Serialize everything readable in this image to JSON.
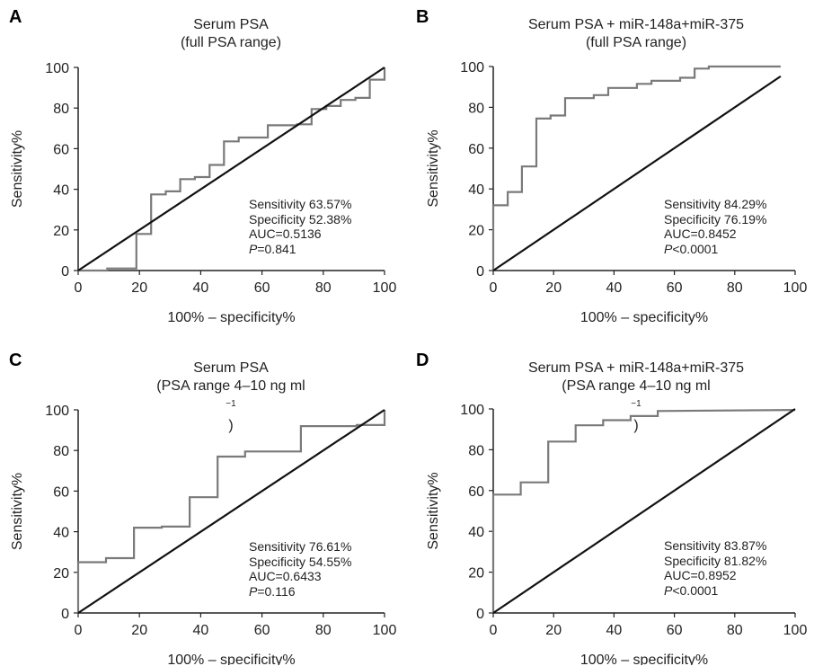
{
  "chart_data": [
    {
      "type": "line",
      "panel_label": "A",
      "title": [
        "Serum PSA",
        "(full PSA range)"
      ],
      "xlabel": "100% – specificity%",
      "ylabel": "Sensitivity%",
      "xlim": [
        0,
        100
      ],
      "ylim": [
        0,
        100
      ],
      "xticks": [
        0,
        20,
        40,
        60,
        80,
        100
      ],
      "yticks": [
        0,
        20,
        40,
        60,
        80,
        100
      ],
      "grid": false,
      "stats": {
        "sensitivity": "Sensitivity 63.57%",
        "specificity": "Specificity 52.38%",
        "auc": "AUC=0.5136",
        "p_label": "P",
        "p_rest": "=0.841"
      },
      "series": [
        {
          "role": "roc",
          "x": [
            0,
            9.5,
            9.5,
            19,
            19,
            23.8,
            23.8,
            28.6,
            28.6,
            33.3,
            33.3,
            38.1,
            38.1,
            42.9,
            42.9,
            47.6,
            47.6,
            52.4,
            52.4,
            61.9,
            61.9,
            71.4,
            71.4,
            76.2,
            76.2,
            81,
            81,
            85.7,
            85.7,
            90.5,
            90.5,
            95.2,
            95.2,
            100,
            100
          ],
          "y": [
            0,
            0,
            1,
            1,
            18,
            18,
            37.5,
            37.5,
            39,
            39,
            45,
            45,
            46,
            46,
            52,
            52,
            63.6,
            63.6,
            65.5,
            65.5,
            71.5,
            71.5,
            72,
            72,
            79.5,
            79.5,
            81,
            81,
            84,
            84,
            85,
            85,
            94,
            94,
            100
          ]
        },
        {
          "role": "reference",
          "x": [
            0,
            100
          ],
          "y": [
            0,
            100
          ]
        }
      ]
    },
    {
      "type": "line",
      "panel_label": "B",
      "title": [
        "Serum PSA + miR-148a+miR-375",
        "(full PSA range)"
      ],
      "xlabel": "100% – specificity%",
      "ylabel": "Sensitivity%",
      "xlim": [
        0,
        100
      ],
      "ylim": [
        0,
        100
      ],
      "xticks": [
        0,
        20,
        40,
        60,
        80,
        100
      ],
      "yticks": [
        0,
        20,
        40,
        60,
        80,
        100
      ],
      "grid": false,
      "stats": {
        "sensitivity": "Sensitivity 84.29%",
        "specificity": "Specificity 76.19%",
        "auc": "AUC=0.8452",
        "p_label": "P",
        "p_rest": "<0.0001"
      },
      "series": [
        {
          "role": "roc",
          "x": [
            0,
            0,
            4.8,
            4.8,
            9.5,
            9.5,
            14.3,
            14.3,
            19,
            19,
            23.8,
            23.8,
            33.3,
            33.3,
            38.1,
            38.1,
            47.6,
            47.6,
            52.4,
            52.4,
            61.9,
            61.9,
            66.7,
            66.7,
            71.4,
            71.4,
            95.2
          ],
          "y": [
            0,
            32,
            32,
            38.5,
            38.5,
            51,
            51,
            74.5,
            74.5,
            76,
            76,
            84.5,
            84.5,
            86,
            86,
            89.5,
            89.5,
            91.5,
            91.5,
            93,
            93,
            94.5,
            94.5,
            99,
            99,
            100,
            100
          ]
        },
        {
          "role": "reference",
          "x": [
            0,
            95.2
          ],
          "y": [
            0,
            95.2
          ]
        }
      ]
    },
    {
      "type": "line",
      "panel_label": "C",
      "title": [
        "Serum PSA",
        "(PSA range 4–10 ng ml",
        "−1",
        ")"
      ],
      "xlabel": "100% – specificity%",
      "ylabel": "Sensitivity%",
      "xlim": [
        0,
        100
      ],
      "ylim": [
        0,
        100
      ],
      "xticks": [
        0,
        20,
        40,
        60,
        80,
        100
      ],
      "yticks": [
        0,
        20,
        40,
        60,
        80,
        100
      ],
      "grid": false,
      "stats": {
        "sensitivity": "Sensitivity 76.61%",
        "specificity": "Specificity 54.55%",
        "auc": "AUC=0.6433",
        "p_label": "P",
        "p_rest": "=0.116"
      },
      "series": [
        {
          "role": "roc",
          "x": [
            0,
            0,
            9.1,
            9.1,
            18.2,
            18.2,
            27.3,
            27.3,
            36.4,
            36.4,
            45.5,
            45.5,
            54.5,
            54.5,
            72.7,
            72.7,
            90.9,
            90.9,
            100,
            100
          ],
          "y": [
            0,
            25,
            25,
            27,
            27,
            42,
            42,
            42.5,
            42.5,
            57,
            57,
            77,
            77,
            79.5,
            79.5,
            92,
            92,
            92.5,
            92.5,
            100
          ]
        },
        {
          "role": "reference",
          "x": [
            0,
            100
          ],
          "y": [
            0,
            100
          ]
        }
      ]
    },
    {
      "type": "line",
      "panel_label": "D",
      "title": [
        "Serum PSA + miR-148a+miR-375",
        "(PSA range 4–10 ng ml",
        "−1",
        ")"
      ],
      "xlabel": "100% – specificity%",
      "ylabel": "Sensitivity%",
      "xlim": [
        0,
        100
      ],
      "ylim": [
        0,
        100
      ],
      "xticks": [
        0,
        20,
        40,
        60,
        80,
        100
      ],
      "yticks": [
        0,
        20,
        40,
        60,
        80,
        100
      ],
      "grid": false,
      "stats": {
        "sensitivity": "Sensitivity 83.87%",
        "specificity": "Specificity 81.82%",
        "auc": "AUC=0.8952",
        "p_label": "P",
        "p_rest": "<0.0001"
      },
      "series": [
        {
          "role": "roc",
          "x": [
            0,
            0,
            9.1,
            9.1,
            18.2,
            18.2,
            27.3,
            27.3,
            36.4,
            36.4,
            45.5,
            45.5,
            54.5,
            54.5,
            100
          ],
          "y": [
            0,
            58,
            58,
            64,
            64,
            84,
            84,
            92,
            92,
            94.5,
            94.5,
            96.5,
            96.5,
            99,
            99.5
          ]
        },
        {
          "role": "reference",
          "x": [
            0,
            100
          ],
          "y": [
            0,
            100
          ]
        }
      ]
    }
  ],
  "colors": {
    "roc": "#7a7a7a",
    "reference": "#111111",
    "axis": "#222222"
  }
}
